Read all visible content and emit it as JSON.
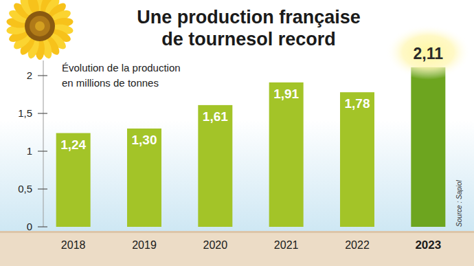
{
  "chart_data": {
    "type": "bar",
    "title": "Une production française de tournesol record",
    "subtitle": "Évolution de la production en millions de tonnes",
    "source": "Source : Sapiol",
    "categories": [
      "2018",
      "2019",
      "2020",
      "2021",
      "2022",
      "2023"
    ],
    "values": [
      1.24,
      1.3,
      1.61,
      1.91,
      1.78,
      2.11
    ],
    "value_labels": [
      "1,24",
      "1,30",
      "1,61",
      "1,91",
      "1,78",
      "2,11"
    ],
    "colors": [
      "#a3c428",
      "#a3c428",
      "#a3c428",
      "#a3c428",
      "#a3c428",
      "#6da51f"
    ],
    "ylim": [
      0,
      2.2
    ],
    "yticks": [
      0,
      {
        "value": 0.5,
        "label": "0,5"
      },
      1,
      {
        "value": 1.5,
        "label": "1,5"
      },
      2
    ],
    "grid": false,
    "data_labels": true
  }
}
